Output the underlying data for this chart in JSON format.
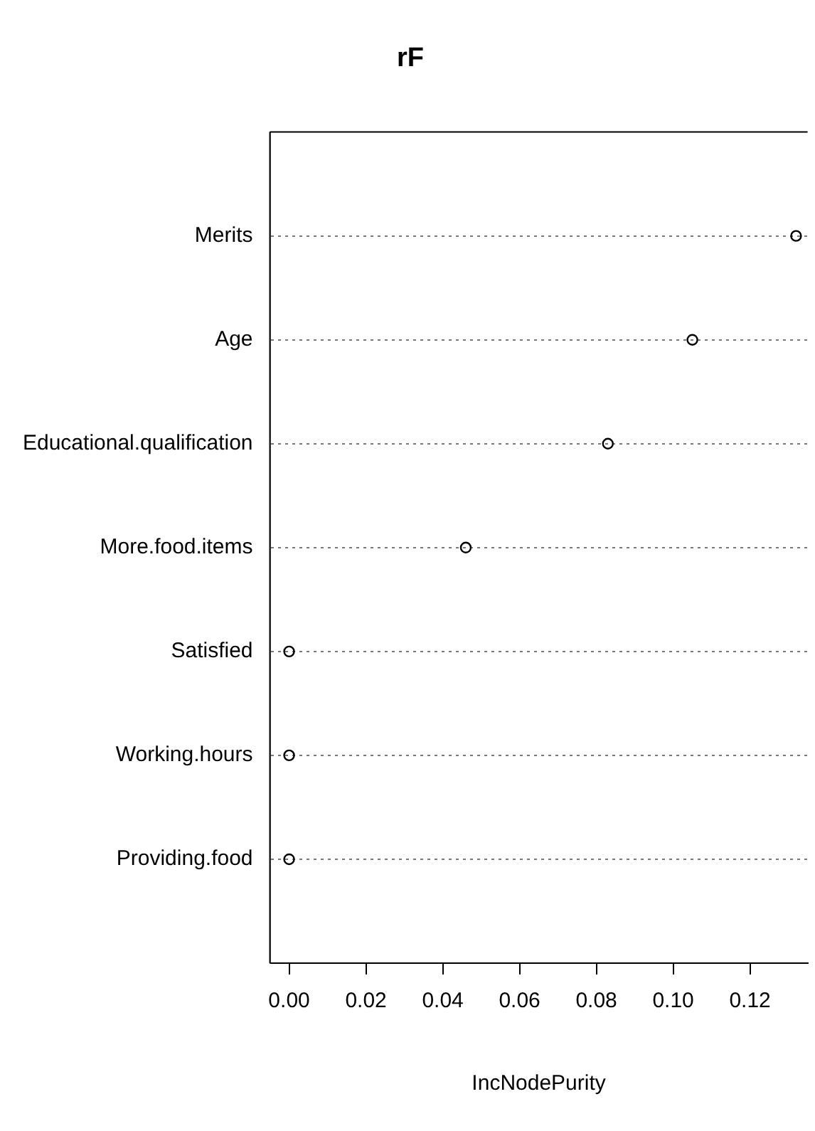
{
  "chart_data": {
    "type": "scatter",
    "title": "rF",
    "xlabel": "IncNodePurity",
    "categories": [
      "Merits",
      "Age",
      "Educational.qualification",
      "More.food.items",
      "Satisfied",
      "Working.hours",
      "Providing.food"
    ],
    "values": [
      0.132,
      0.105,
      0.083,
      0.046,
      0,
      0,
      0
    ],
    "color": "#000000",
    "marker": "circle",
    "orientation": "horizontal",
    "xlim": [
      -0.005,
      0.135
    ],
    "xticks": [
      {
        "value": 0,
        "label": "0.00"
      },
      {
        "value": 0.02,
        "label": "0.02"
      },
      {
        "value": 0.04,
        "label": "0.04"
      },
      {
        "value": 0.06,
        "label": "0.06"
      },
      {
        "value": 0.08,
        "label": "0.08"
      },
      {
        "value": 0.1,
        "label": "0.10"
      },
      {
        "value": 0.12,
        "label": "0.12"
      }
    ],
    "grid": "y",
    "legend": false
  }
}
